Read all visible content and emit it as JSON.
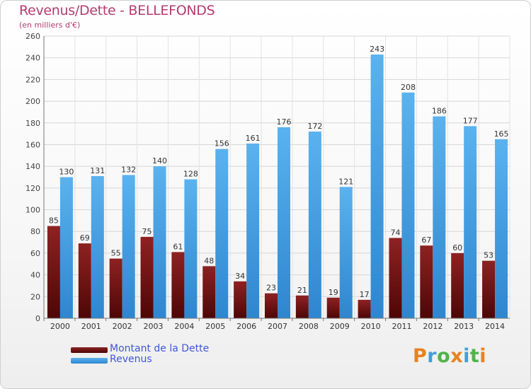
{
  "header": {
    "title": "Revenus/Dette - BELLEFONDS",
    "subtitle": "(en milliers d'€)"
  },
  "logo": {
    "text": "Proxiti",
    "letter_colors": [
      "#e9821c",
      "#3fa0d8",
      "#4fb44a",
      "#e9821c",
      "#3fa0d8",
      "#4fb44a",
      "#e9821c"
    ]
  },
  "chart_data": {
    "type": "bar",
    "categories": [
      "2000",
      "2001",
      "2002",
      "2003",
      "2004",
      "2005",
      "2006",
      "2007",
      "2008",
      "2009",
      "2010",
      "2011",
      "2012",
      "2013",
      "2014"
    ],
    "series": [
      {
        "name": "Montant de la Dette",
        "color": "#7a1616",
        "values": [
          85,
          69,
          55,
          75,
          61,
          48,
          34,
          23,
          21,
          19,
          17,
          74,
          67,
          60,
          53
        ]
      },
      {
        "name": "Revenus",
        "color": "#4aa3e6",
        "values": [
          130,
          131,
          132,
          140,
          128,
          156,
          161,
          176,
          172,
          121,
          243,
          208,
          186,
          177,
          165
        ]
      }
    ],
    "ylim": [
      0,
      260
    ],
    "yticks": [
      0,
      20,
      40,
      60,
      80,
      100,
      120,
      140,
      160,
      180,
      200,
      220,
      240,
      260
    ],
    "grid": true,
    "legend_position": "bottom-left"
  }
}
